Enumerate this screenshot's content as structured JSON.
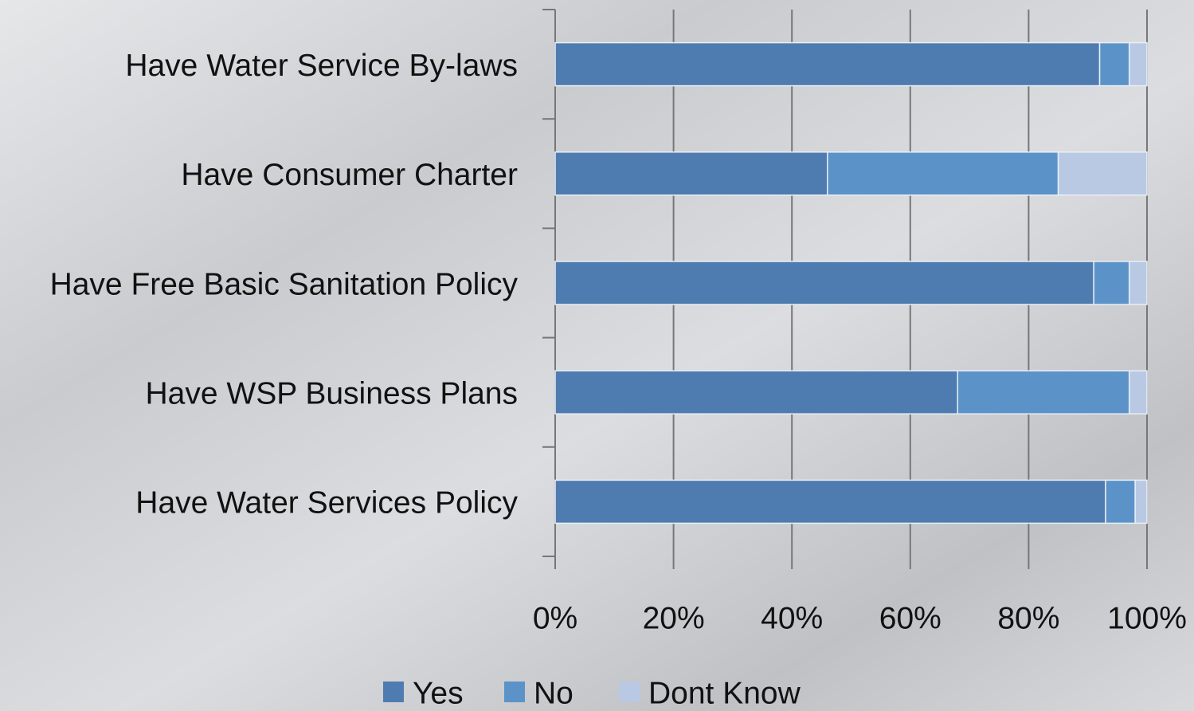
{
  "chart_data": {
    "type": "stacked_bar_horizontal",
    "categories": [
      "Have Water Service By-laws",
      "Have Consumer Charter",
      "Have Free Basic Sanitation Policy",
      "Have WSP Business Plans",
      "Have Water Services Policy"
    ],
    "series": [
      {
        "name": "Yes",
        "color": "#4f7cb0",
        "values": [
          92,
          46,
          91,
          68,
          93
        ]
      },
      {
        "name": "No",
        "color": "#5b93c9",
        "values": [
          5,
          39,
          6,
          29,
          5
        ]
      },
      {
        "name": "Dont Know",
        "color": "#b9c9e3",
        "values": [
          3,
          15,
          3,
          3,
          2
        ]
      }
    ],
    "xlim": [
      0,
      100
    ],
    "xticks": [
      {
        "value": 0,
        "label": "0%"
      },
      {
        "value": 20,
        "label": "20%"
      },
      {
        "value": 40,
        "label": "40%"
      },
      {
        "value": 60,
        "label": "60%"
      },
      {
        "value": 80,
        "label": "80%"
      },
      {
        "value": 100,
        "label": "100%"
      }
    ],
    "grid": true,
    "legend": "bottom"
  }
}
